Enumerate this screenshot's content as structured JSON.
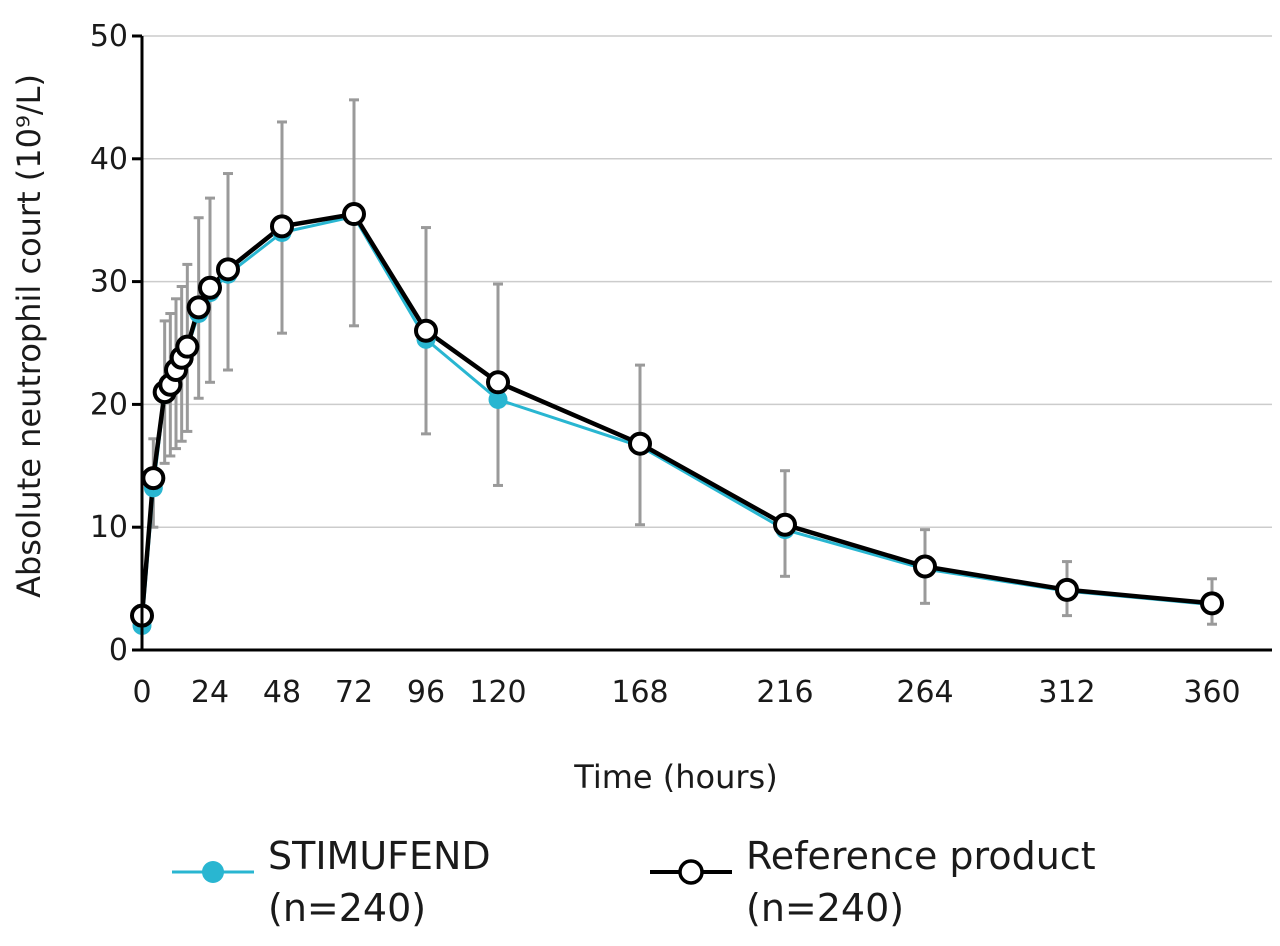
{
  "chart_data": {
    "type": "line",
    "xlabel": "Time (hours)",
    "ylabel": "Absolute neutrophil court (10⁹/L)",
    "xticks": [
      "0",
      "24",
      "48",
      "72",
      "96",
      "120",
      "168",
      "216",
      "264",
      "312",
      "360"
    ],
    "yticks": [
      "0",
      "10",
      "20",
      "30",
      "40",
      "50"
    ],
    "ylim": [
      0,
      50
    ],
    "grid": "horizontal",
    "legend_placement": "bottom",
    "colors": {
      "stimufend": "#29b6d1",
      "reference": "#000000",
      "errorbar": "#9a9a9a",
      "grid": "#cccccc"
    },
    "series": [
      {
        "name": "STIMUFEND (n=240)",
        "legend_label": "STIMUFEND",
        "legend_n": "(n=240)",
        "marker": "filled-circle",
        "points": [
          {
            "x": 0,
            "y": 2.0
          },
          {
            "x": 4,
            "y": 13.2
          },
          {
            "x": 8,
            "y": 20.8
          },
          {
            "x": 10,
            "y": 21.6
          },
          {
            "x": 12,
            "y": 22.8
          },
          {
            "x": 14,
            "y": 23.6
          },
          {
            "x": 16,
            "y": 24.6
          },
          {
            "x": 20,
            "y": 27.4
          },
          {
            "x": 24,
            "y": 29.1
          },
          {
            "x": 30,
            "y": 30.6
          },
          {
            "x": 48,
            "y": 34.0
          },
          {
            "x": 72,
            "y": 35.3
          },
          {
            "x": 96,
            "y": 25.3
          },
          {
            "x": 120,
            "y": 20.4
          },
          {
            "x": 168,
            "y": 16.6
          },
          {
            "x": 216,
            "y": 9.8
          },
          {
            "x": 264,
            "y": 6.6
          },
          {
            "x": 312,
            "y": 4.8
          },
          {
            "x": 360,
            "y": 3.7
          }
        ]
      },
      {
        "name": "Reference product (n=240)",
        "legend_label": "Reference product",
        "legend_n": "(n=240)",
        "marker": "open-circle",
        "points": [
          {
            "x": 0,
            "y": 2.8,
            "lo": 2.0,
            "hi": 3.6
          },
          {
            "x": 4,
            "y": 14.0,
            "lo": 10.0,
            "hi": 17.2
          },
          {
            "x": 8,
            "y": 21.0,
            "lo": 15.2,
            "hi": 26.8
          },
          {
            "x": 10,
            "y": 21.6,
            "lo": 15.8,
            "hi": 27.4
          },
          {
            "x": 12,
            "y": 22.8,
            "lo": 16.4,
            "hi": 28.6
          },
          {
            "x": 14,
            "y": 23.8,
            "lo": 17.0,
            "hi": 29.6
          },
          {
            "x": 16,
            "y": 24.7,
            "lo": 17.8,
            "hi": 31.4
          },
          {
            "x": 20,
            "y": 27.9,
            "lo": 20.5,
            "hi": 35.2
          },
          {
            "x": 24,
            "y": 29.5,
            "lo": 21.8,
            "hi": 36.8
          },
          {
            "x": 30,
            "y": 31.0,
            "lo": 22.8,
            "hi": 38.8
          },
          {
            "x": 48,
            "y": 34.5,
            "lo": 25.8,
            "hi": 43.0
          },
          {
            "x": 72,
            "y": 35.5,
            "lo": 26.4,
            "hi": 44.8
          },
          {
            "x": 96,
            "y": 26.0,
            "lo": 17.6,
            "hi": 34.4
          },
          {
            "x": 120,
            "y": 21.8,
            "lo": 13.4,
            "hi": 29.8
          },
          {
            "x": 168,
            "y": 16.8,
            "lo": 10.2,
            "hi": 23.2
          },
          {
            "x": 216,
            "y": 10.2,
            "lo": 6.0,
            "hi": 14.6
          },
          {
            "x": 264,
            "y": 6.8,
            "lo": 3.8,
            "hi": 9.8
          },
          {
            "x": 312,
            "y": 4.9,
            "lo": 2.8,
            "hi": 7.2
          },
          {
            "x": 360,
            "y": 3.8,
            "lo": 2.1,
            "hi": 5.8
          }
        ]
      }
    ]
  }
}
